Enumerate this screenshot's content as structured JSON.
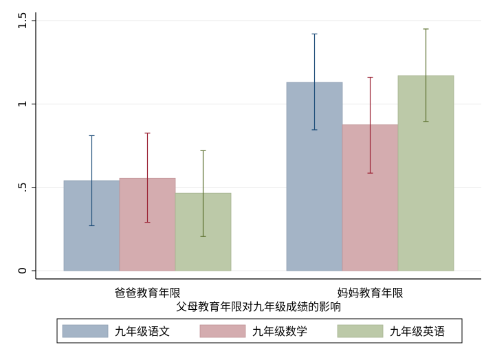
{
  "chart_data": {
    "type": "bar",
    "categories": [
      "爸爸教育年限",
      "妈妈教育年限"
    ],
    "xlabel": "父母教育年限对九年级成绩的影响",
    "ylabel": "",
    "ylim": [
      0,
      1.5
    ],
    "yticks": [
      0,
      0.5,
      1,
      1.5
    ],
    "ytick_labels": [
      "0",
      ".5",
      "1",
      "1.5"
    ],
    "grid": true,
    "legend_position": "bottom",
    "series": [
      {
        "name": "九年级语文",
        "color": "#a4b4c6",
        "edge": "#8e9fb2",
        "errcolor": "#1f4e79",
        "values": [
          0.54,
          1.13
        ],
        "ci_low": [
          0.27,
          0.845
        ],
        "ci_high": [
          0.81,
          1.42
        ]
      },
      {
        "name": "九年级数学",
        "color": "#d4acaf",
        "edge": "#bf9194",
        "errcolor": "#9b2335",
        "values": [
          0.555,
          0.875
        ],
        "ci_low": [
          0.29,
          0.585
        ],
        "ci_high": [
          0.825,
          1.16
        ]
      },
      {
        "name": "九年级英语",
        "color": "#bcc9a8",
        "edge": "#a5b38f",
        "errcolor": "#5a6e2c",
        "values": [
          0.465,
          1.17
        ],
        "ci_low": [
          0.205,
          0.895
        ],
        "ci_high": [
          0.72,
          1.45
        ]
      }
    ]
  }
}
